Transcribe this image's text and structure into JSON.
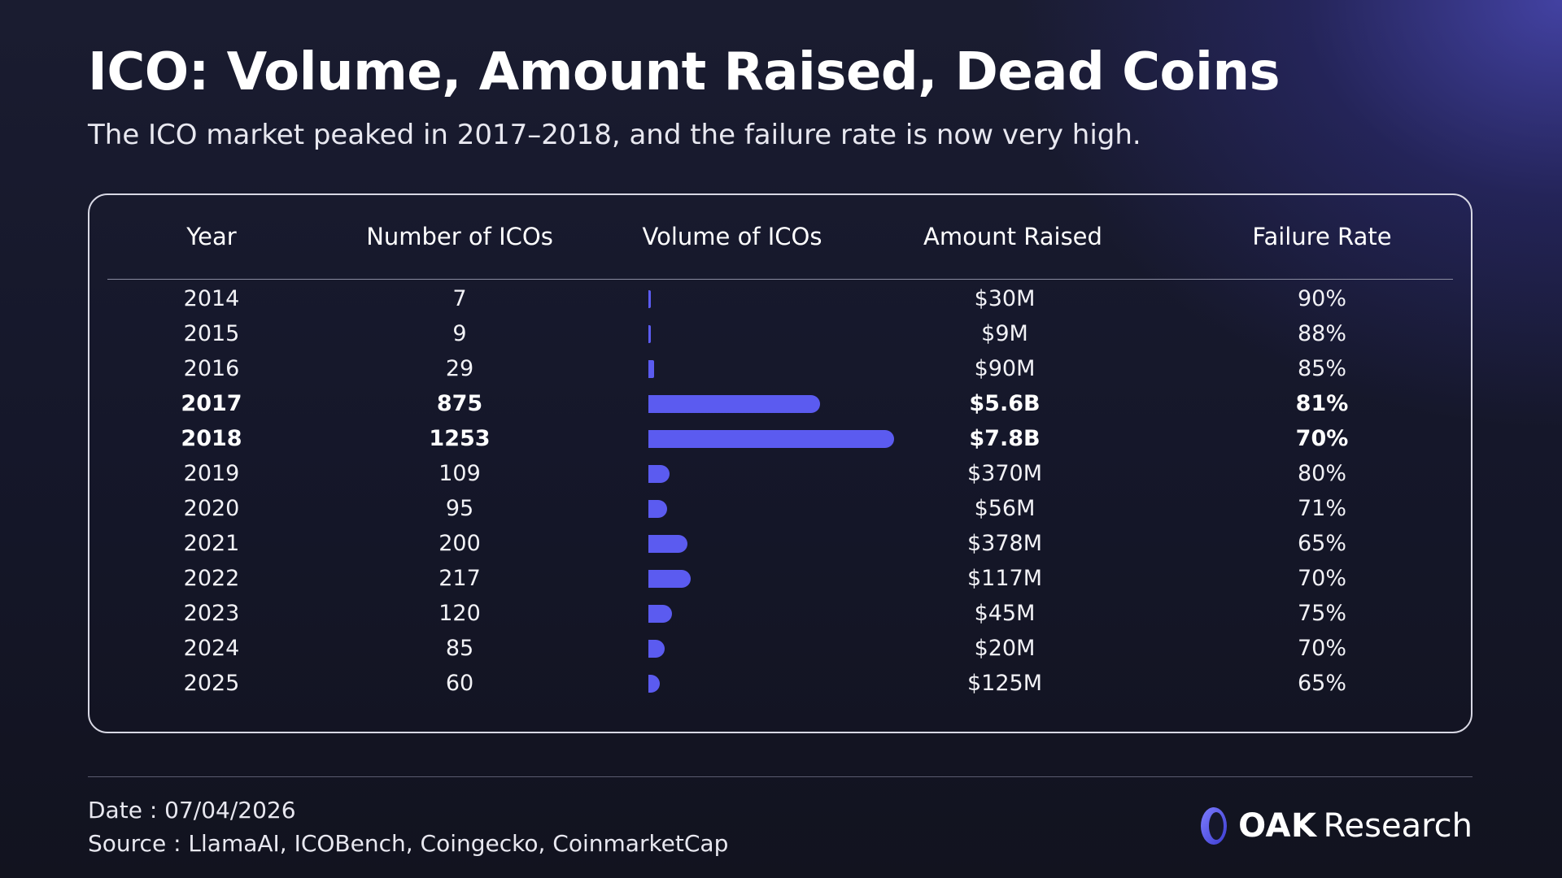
{
  "header": {
    "title": "ICO: Volume, Amount Raised, Dead Coins",
    "subtitle": "The ICO market peaked in 2017–2018, and the failure rate is now very high."
  },
  "chart_data": {
    "type": "table",
    "columns": [
      "Year",
      "Number of ICOs",
      "Volume of ICOs",
      "Amount Raised",
      "Failure Rate"
    ],
    "rows": [
      {
        "year": "2014",
        "number": "7",
        "number_value": 7,
        "amount": "$30M",
        "failure": "90%",
        "highlight": false
      },
      {
        "year": "2015",
        "number": "9",
        "number_value": 9,
        "amount": "$9M",
        "failure": "88%",
        "highlight": false
      },
      {
        "year": "2016",
        "number": "29",
        "number_value": 29,
        "amount": "$90M",
        "failure": "85%",
        "highlight": false
      },
      {
        "year": "2017",
        "number": "875",
        "number_value": 875,
        "amount": "$5.6B",
        "failure": "81%",
        "highlight": true
      },
      {
        "year": "2018",
        "number": "1253",
        "number_value": 1253,
        "amount": "$7.8B",
        "failure": "70%",
        "highlight": true
      },
      {
        "year": "2019",
        "number": "109",
        "number_value": 109,
        "amount": "$370M",
        "failure": "80%",
        "highlight": false
      },
      {
        "year": "2020",
        "number": "95",
        "number_value": 95,
        "amount": "$56M",
        "failure": "71%",
        "highlight": false
      },
      {
        "year": "2021",
        "number": "200",
        "number_value": 200,
        "amount": "$378M",
        "failure": "65%",
        "highlight": false
      },
      {
        "year": "2022",
        "number": "217",
        "number_value": 217,
        "amount": "$117M",
        "failure": "70%",
        "highlight": false
      },
      {
        "year": "2023",
        "number": "120",
        "number_value": 120,
        "amount": "$45M",
        "failure": "75%",
        "highlight": false
      },
      {
        "year": "2024",
        "number": "85",
        "number_value": 85,
        "amount": "$20M",
        "failure": "70%",
        "highlight": false
      },
      {
        "year": "2025",
        "number": "60",
        "number_value": 60,
        "amount": "$125M",
        "failure": "65%",
        "highlight": false
      }
    ],
    "bar_max_value": 1253
  },
  "footer": {
    "date": "Date : 07/04/2026",
    "source": "Source : LlamaAI, ICOBench, Coingecko, CoinmarketCap",
    "logo_oak": "OAK",
    "logo_research": "Research"
  },
  "colors": {
    "bar": "#5b5bf0",
    "accent": "#5b5bf0"
  }
}
